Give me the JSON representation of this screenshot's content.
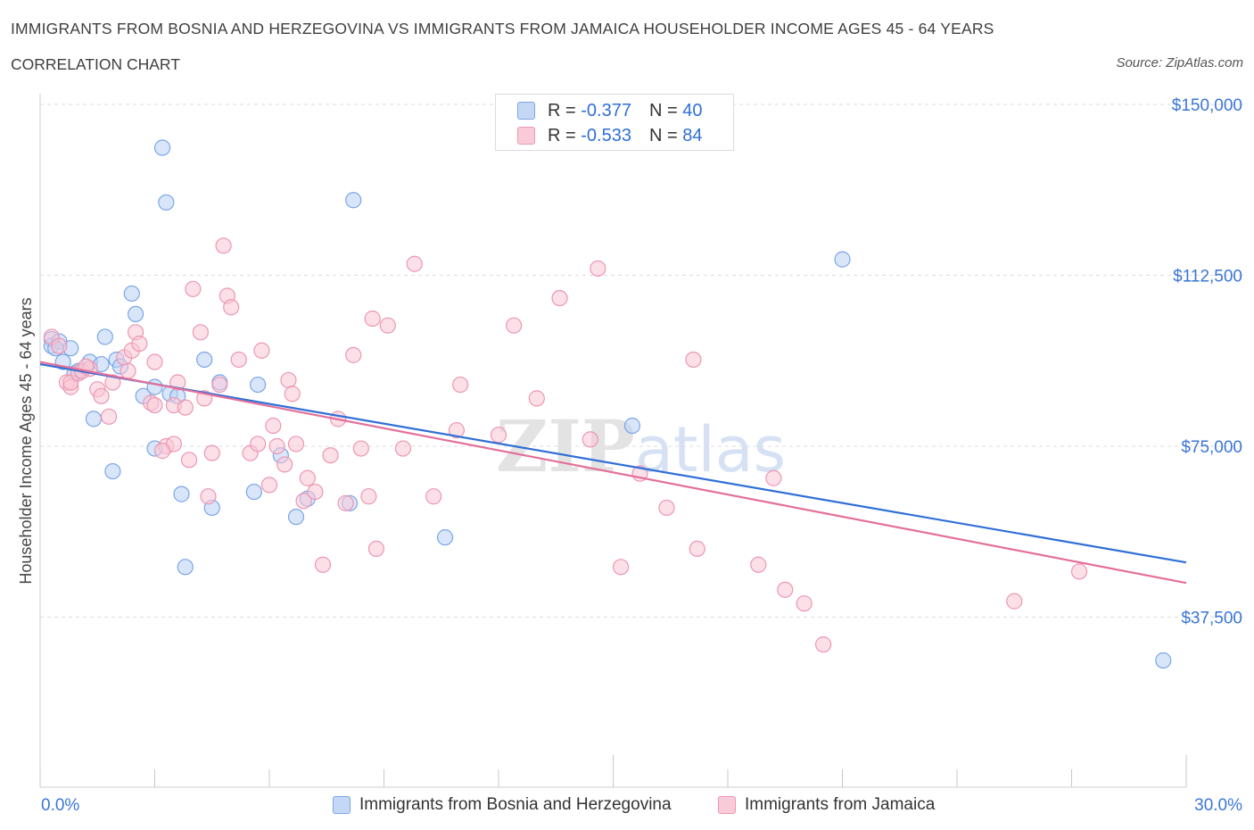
{
  "header": {
    "title": "IMMIGRANTS FROM BOSNIA AND HERZEGOVINA VS IMMIGRANTS FROM JAMAICA HOUSEHOLDER INCOME AGES 45 - 64 YEARS",
    "subtitle": "CORRELATION CHART",
    "source": "Source: ZipAtlas.com"
  },
  "legend": {
    "rows": [
      {
        "r_label": "R =",
        "r_value": "-0.377",
        "n_label": "N =",
        "n_value": "40"
      },
      {
        "r_label": "R =",
        "r_value": "-0.533",
        "n_label": "N =",
        "n_value": "84"
      }
    ]
  },
  "watermark": {
    "zip": "ZIP",
    "atlas": "atlas"
  },
  "colors": {
    "bosnia_fill": "#b9d2f5",
    "bosnia_stroke": "#7aa6e6",
    "bosnia_line": "#2f6fd6",
    "jamaica_fill": "#f9c6d6",
    "jamaica_stroke": "#ec97b2",
    "jamaica_line": "#e3709a",
    "axis_label": "#3a76d8",
    "grid": "#dddddd"
  },
  "chart_data": {
    "type": "scatter",
    "title": "IMMIGRANTS FROM BOSNIA AND HERZEGOVINA VS IMMIGRANTS FROM JAMAICA HOUSEHOLDER INCOME AGES 45 - 64 YEARS",
    "xlabel": "",
    "ylabel": "Householder Income Ages 45 - 64 years",
    "xlim": [
      0,
      30
    ],
    "ylim": [
      0,
      150000
    ],
    "x_tick_labels": [
      "0.0%",
      "30.0%"
    ],
    "y_ticks": [
      37500,
      75000,
      112500,
      150000
    ],
    "y_tick_labels": [
      "$37,500",
      "$75,000",
      "$112,500",
      "$150,000"
    ],
    "grid": true,
    "legend_position": "top-center",
    "series": [
      {
        "name": "Immigrants from Bosnia and Herzegovina",
        "trend": {
          "x": [
            0,
            30
          ],
          "y": [
            93000,
            49500
          ]
        },
        "points": [
          [
            0.3,
            98500
          ],
          [
            0.3,
            97000
          ],
          [
            0.5,
            98000
          ],
          [
            0.4,
            96500
          ],
          [
            0.8,
            96500
          ],
          [
            0.6,
            93500
          ],
          [
            0.9,
            91000
          ],
          [
            1.0,
            91500
          ],
          [
            1.3,
            93500
          ],
          [
            1.6,
            93000
          ],
          [
            1.7,
            99000
          ],
          [
            2.0,
            94000
          ],
          [
            2.1,
            92500
          ],
          [
            2.4,
            108500
          ],
          [
            2.5,
            104000
          ],
          [
            2.7,
            86000
          ],
          [
            3.0,
            88000
          ],
          [
            3.2,
            140500
          ],
          [
            3.3,
            128500
          ],
          [
            3.4,
            86500
          ],
          [
            3.6,
            86000
          ],
          [
            4.3,
            94000
          ],
          [
            4.7,
            89000
          ],
          [
            5.7,
            88500
          ],
          [
            8.2,
            129000
          ],
          [
            1.4,
            81000
          ],
          [
            1.9,
            69500
          ],
          [
            3.0,
            74500
          ],
          [
            3.7,
            64500
          ],
          [
            3.8,
            48500
          ],
          [
            4.5,
            61500
          ],
          [
            5.6,
            65000
          ],
          [
            6.3,
            73000
          ],
          [
            6.7,
            59500
          ],
          [
            7.0,
            63500
          ],
          [
            8.1,
            62500
          ],
          [
            10.6,
            55000
          ],
          [
            15.5,
            79500
          ],
          [
            21.0,
            116000
          ],
          [
            29.4,
            28000
          ]
        ]
      },
      {
        "name": "Immigrants from Jamaica",
        "trend": {
          "x": [
            0,
            30
          ],
          "y": [
            93500,
            45000
          ]
        },
        "points": [
          [
            0.3,
            99000
          ],
          [
            0.5,
            97000
          ],
          [
            0.7,
            89000
          ],
          [
            0.8,
            88000
          ],
          [
            0.8,
            89000
          ],
          [
            1.0,
            91000
          ],
          [
            1.1,
            91500
          ],
          [
            1.3,
            92000
          ],
          [
            1.5,
            87500
          ],
          [
            1.6,
            86000
          ],
          [
            1.8,
            81500
          ],
          [
            1.9,
            89000
          ],
          [
            2.2,
            94500
          ],
          [
            2.3,
            91500
          ],
          [
            2.4,
            96000
          ],
          [
            2.5,
            100000
          ],
          [
            2.6,
            97500
          ],
          [
            2.9,
            84500
          ],
          [
            3.0,
            84000
          ],
          [
            3.0,
            93500
          ],
          [
            3.3,
            75000
          ],
          [
            3.5,
            84000
          ],
          [
            3.5,
            75500
          ],
          [
            3.6,
            89000
          ],
          [
            3.8,
            83500
          ],
          [
            3.9,
            72000
          ],
          [
            4.0,
            109500
          ],
          [
            4.2,
            100000
          ],
          [
            4.3,
            85500
          ],
          [
            4.4,
            64000
          ],
          [
            4.5,
            73500
          ],
          [
            4.7,
            88500
          ],
          [
            4.8,
            119000
          ],
          [
            4.9,
            108000
          ],
          [
            5.0,
            105500
          ],
          [
            5.2,
            94000
          ],
          [
            5.5,
            73500
          ],
          [
            5.7,
            75500
          ],
          [
            5.8,
            96000
          ],
          [
            6.0,
            66500
          ],
          [
            6.1,
            79500
          ],
          [
            6.2,
            75000
          ],
          [
            6.4,
            71000
          ],
          [
            6.5,
            89500
          ],
          [
            6.6,
            86500
          ],
          [
            6.7,
            75500
          ],
          [
            6.9,
            63000
          ],
          [
            7.0,
            68000
          ],
          [
            7.2,
            65000
          ],
          [
            7.4,
            49000
          ],
          [
            7.6,
            73000
          ],
          [
            7.8,
            81000
          ],
          [
            8.0,
            62500
          ],
          [
            8.2,
            95000
          ],
          [
            8.4,
            74500
          ],
          [
            8.6,
            64000
          ],
          [
            8.7,
            103000
          ],
          [
            8.8,
            52500
          ],
          [
            9.1,
            101500
          ],
          [
            9.5,
            74500
          ],
          [
            9.8,
            115000
          ],
          [
            10.3,
            64000
          ],
          [
            10.9,
            78500
          ],
          [
            11.0,
            88500
          ],
          [
            12.0,
            77500
          ],
          [
            12.4,
            101500
          ],
          [
            13.0,
            85500
          ],
          [
            13.6,
            107500
          ],
          [
            14.4,
            76500
          ],
          [
            14.6,
            114000
          ],
          [
            15.2,
            48500
          ],
          [
            15.7,
            69000
          ],
          [
            16.4,
            61500
          ],
          [
            17.1,
            94000
          ],
          [
            17.2,
            52500
          ],
          [
            18.8,
            49000
          ],
          [
            19.2,
            68000
          ],
          [
            19.5,
            43500
          ],
          [
            20.0,
            40500
          ],
          [
            20.5,
            31500
          ],
          [
            25.5,
            41000
          ],
          [
            27.2,
            47500
          ],
          [
            1.2,
            92500
          ],
          [
            3.2,
            74000
          ]
        ]
      }
    ]
  },
  "bottom_legend": {
    "series_a": "Immigrants from Bosnia and Herzegovina",
    "series_b": "Immigrants from Jamaica"
  }
}
